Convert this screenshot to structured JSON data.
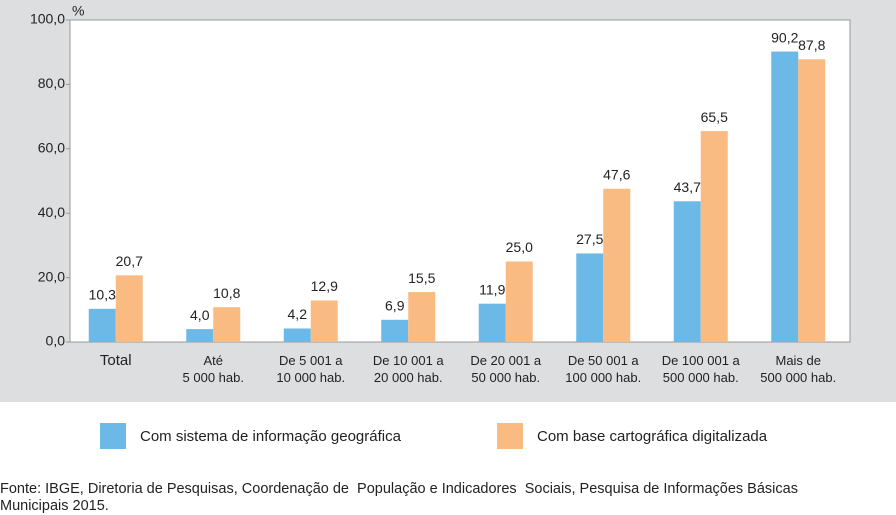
{
  "chart_data": {
    "type": "bar",
    "y_unit": "%",
    "categories": [
      "Total",
      "Até\n5 000 hab.",
      "De 5 001 a\n10 000 hab.",
      "De 10 001 a\n20 000 hab.",
      "De 20 001 a\n50 000 hab.",
      "De 50 001 a\n100 000 hab.",
      "De 100 001 a\n500 000 hab.",
      "Mais de\n500 000 hab."
    ],
    "series": [
      {
        "name": "Com sistema de informação geográfica",
        "color": "#6cb8e6",
        "values": [
          10.3,
          4.0,
          4.2,
          6.9,
          11.9,
          27.5,
          43.7,
          90.2
        ],
        "value_labels": [
          "10,3",
          "4,0",
          "4,2",
          "6,9",
          "11,9",
          "27,5",
          "43,7",
          "90,2"
        ]
      },
      {
        "name": "Com base cartográfica digitalizada",
        "color": "#f9bb82",
        "values": [
          20.7,
          10.8,
          12.9,
          15.5,
          25.0,
          47.6,
          65.5,
          87.8
        ],
        "value_labels": [
          "20,7",
          "10,8",
          "12,9",
          "15,5",
          "25,0",
          "47,6",
          "65,5",
          "87,8"
        ]
      }
    ],
    "ylim": [
      0,
      100
    ],
    "yticks": [
      {
        "value": 0,
        "label": "0,0"
      },
      {
        "value": 20,
        "label": "20,0"
      },
      {
        "value": 40,
        "label": "40,0"
      },
      {
        "value": 60,
        "label": "60,0"
      },
      {
        "value": 80,
        "label": "80,0"
      },
      {
        "value": 100,
        "label": "100,0"
      }
    ],
    "legend": "bottom"
  },
  "source": "Fonte: IBGE, Diretoria de Pesquisas, Coordenação de  População e Indicadores  Sociais, Pesquisa de Informações Básicas Municipais 2015."
}
